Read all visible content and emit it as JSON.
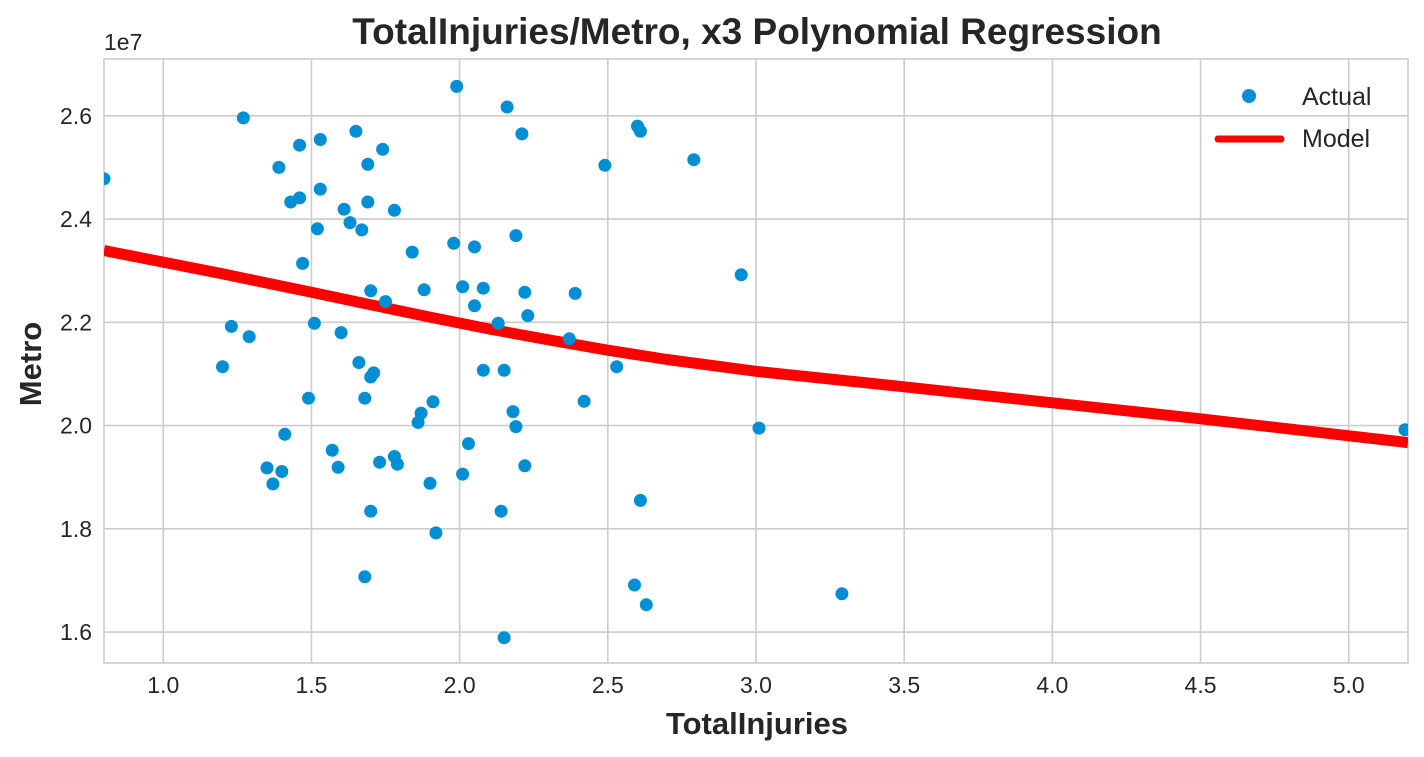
{
  "chart_data": {
    "type": "scatter",
    "title": "TotalInjuries/Metro, x3 Polynomial Regression",
    "xlabel": "TotalInjuries",
    "ylabel": "Metro",
    "y_offset_text": "1e7",
    "y_scale_factor": 10000000,
    "xlim": [
      0.8,
      5.2
    ],
    "ylim": [
      1.54,
      2.71
    ],
    "xticks": [
      1.0,
      1.5,
      2.0,
      2.5,
      3.0,
      3.5,
      4.0,
      4.5,
      5.0
    ],
    "xtick_labels": [
      "1.0",
      "1.5",
      "2.0",
      "2.5",
      "3.0",
      "3.5",
      "4.0",
      "4.5",
      "5.0"
    ],
    "yticks": [
      1.6,
      1.8,
      2.0,
      2.2,
      2.4,
      2.6
    ],
    "ytick_labels": [
      "1.6",
      "1.8",
      "2.0",
      "2.2",
      "2.4",
      "2.6"
    ],
    "grid": true,
    "legend": "top-right",
    "series": [
      {
        "name": "Actual",
        "kind": "scatter",
        "color": "#008fd5",
        "points": [
          [
            0.8,
            2.478
          ],
          [
            1.27,
            2.596
          ],
          [
            1.46,
            2.543
          ],
          [
            1.53,
            2.554
          ],
          [
            1.65,
            2.57
          ],
          [
            1.74,
            2.535
          ],
          [
            1.39,
            2.5
          ],
          [
            1.69,
            2.506
          ],
          [
            1.53,
            2.458
          ],
          [
            1.46,
            2.441
          ],
          [
            1.43,
            2.433
          ],
          [
            1.69,
            2.433
          ],
          [
            1.61,
            2.419
          ],
          [
            1.78,
            2.417
          ],
          [
            1.63,
            2.393
          ],
          [
            1.67,
            2.379
          ],
          [
            1.52,
            2.381
          ],
          [
            1.47,
            2.314
          ],
          [
            1.7,
            2.261
          ],
          [
            1.75,
            2.24
          ],
          [
            1.88,
            2.263
          ],
          [
            1.84,
            2.336
          ],
          [
            1.98,
            2.353
          ],
          [
            2.05,
            2.346
          ],
          [
            2.19,
            2.368
          ],
          [
            2.01,
            2.269
          ],
          [
            2.08,
            2.266
          ],
          [
            2.05,
            2.232
          ],
          [
            2.22,
            2.258
          ],
          [
            2.23,
            2.213
          ],
          [
            2.39,
            2.256
          ],
          [
            2.13,
            2.198
          ],
          [
            1.51,
            2.198
          ],
          [
            1.6,
            2.18
          ],
          [
            1.23,
            2.192
          ],
          [
            1.29,
            2.172
          ],
          [
            1.2,
            2.114
          ],
          [
            1.66,
            2.122
          ],
          [
            1.71,
            2.102
          ],
          [
            1.7,
            2.094
          ],
          [
            2.08,
            2.107
          ],
          [
            2.15,
            2.107
          ],
          [
            2.37,
            2.168
          ],
          [
            2.53,
            2.114
          ],
          [
            1.49,
            2.053
          ],
          [
            1.68,
            2.053
          ],
          [
            1.91,
            2.046
          ],
          [
            1.87,
            2.024
          ],
          [
            1.86,
            2.006
          ],
          [
            2.18,
            2.027
          ],
          [
            2.19,
            1.998
          ],
          [
            2.42,
            2.047
          ],
          [
            1.41,
            1.983
          ],
          [
            1.57,
            1.952
          ],
          [
            2.03,
            1.965
          ],
          [
            1.35,
            1.918
          ],
          [
            1.4,
            1.911
          ],
          [
            1.59,
            1.919
          ],
          [
            1.73,
            1.929
          ],
          [
            1.79,
            1.925
          ],
          [
            1.78,
            1.94
          ],
          [
            2.01,
            1.906
          ],
          [
            2.22,
            1.922
          ],
          [
            1.37,
            1.887
          ],
          [
            1.9,
            1.888
          ],
          [
            1.7,
            1.834
          ],
          [
            2.14,
            1.834
          ],
          [
            2.61,
            1.855
          ],
          [
            1.92,
            1.792
          ],
          [
            1.68,
            1.707
          ],
          [
            2.59,
            1.691
          ],
          [
            2.63,
            1.653
          ],
          [
            3.29,
            1.674
          ],
          [
            2.15,
            1.589
          ],
          [
            2.16,
            2.617
          ],
          [
            1.99,
            2.657
          ],
          [
            2.21,
            2.565
          ],
          [
            2.6,
            2.58
          ],
          [
            2.61,
            2.57
          ],
          [
            2.49,
            2.504
          ],
          [
            2.79,
            2.515
          ],
          [
            2.95,
            2.292
          ],
          [
            3.01,
            1.995
          ],
          [
            5.19,
            1.992
          ]
        ]
      },
      {
        "name": "Model",
        "kind": "line",
        "color": "#ff0000",
        "x": [
          0.8,
          1.2,
          1.3,
          1.5,
          1.7,
          1.9,
          2.1,
          2.3,
          2.5,
          2.7,
          3.0,
          3.5,
          4.0,
          4.5,
          5.2
        ],
        "y": [
          2.339,
          2.294,
          2.282,
          2.258,
          2.234,
          2.21,
          2.187,
          2.166,
          2.146,
          2.128,
          2.105,
          2.075,
          2.044,
          2.013,
          1.967
        ]
      }
    ]
  }
}
